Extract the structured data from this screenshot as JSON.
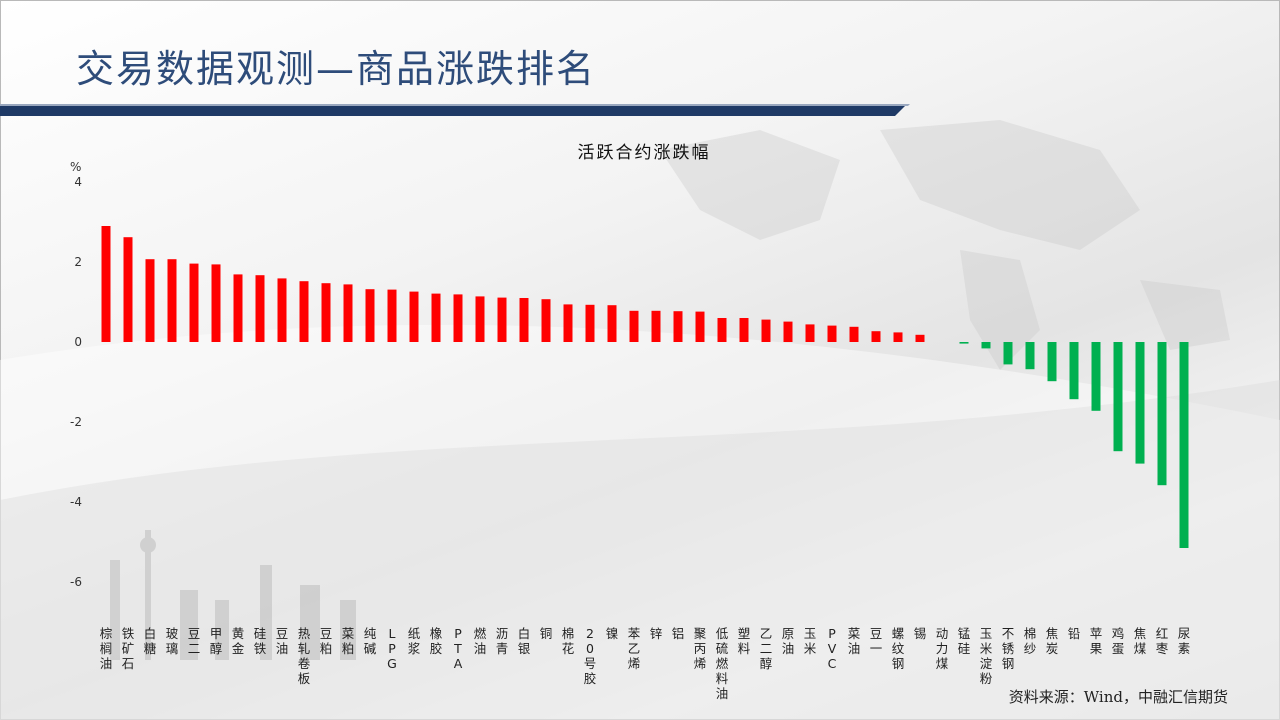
{
  "slide": {
    "title": "交易数据观测—商品涨跌排名",
    "source": "资料来源：Wind，中融汇信期货"
  },
  "colors": {
    "up": "#ff0000",
    "down": "#00b050",
    "title": "#2e4c7a",
    "band": "#1f3a66"
  },
  "chart_data": {
    "type": "bar",
    "title": "活跃合约涨跌幅",
    "ylabel": "%",
    "ylim": [
      -6,
      4
    ],
    "yticks": [
      4,
      2,
      0,
      -2,
      -4,
      -6
    ],
    "grid": false,
    "categories": [
      "棕榈油",
      "铁矿石",
      "白糖",
      "玻璃",
      "豆二",
      "甲醇",
      "黄金",
      "硅铁",
      "豆油",
      "热轧卷板",
      "豆粕",
      "菜粕",
      "纯碱",
      "LPG",
      "纸浆",
      "橡胶",
      "PTA",
      "燃油",
      "沥青",
      "白银",
      "铜",
      "棉花",
      "20号胶",
      "镍",
      "苯乙烯",
      "锌",
      "铝",
      "聚丙烯",
      "低硫燃料油",
      "塑料",
      "乙二醇",
      "原油",
      "玉米",
      "PVC",
      "菜油",
      "豆一",
      "螺纹钢",
      "锡",
      "动力煤",
      "锰硅",
      "玉米淀粉",
      "不锈钢",
      "棉纱",
      "焦炭",
      "铅",
      "苹果",
      "鸡蛋",
      "焦煤",
      "红枣",
      "尿素"
    ],
    "values": [
      2.9,
      2.62,
      2.07,
      2.07,
      1.96,
      1.94,
      1.69,
      1.67,
      1.59,
      1.52,
      1.47,
      1.44,
      1.32,
      1.31,
      1.26,
      1.21,
      1.19,
      1.14,
      1.11,
      1.1,
      1.07,
      0.94,
      0.93,
      0.92,
      0.78,
      0.78,
      0.77,
      0.76,
      0.6,
      0.6,
      0.56,
      0.51,
      0.44,
      0.41,
      0.38,
      0.27,
      0.24,
      0.18,
      0.0,
      -0.04,
      -0.16,
      -0.56,
      -0.68,
      -0.98,
      -1.43,
      -1.72,
      -2.73,
      -3.04,
      -3.58,
      -5.15
    ]
  }
}
